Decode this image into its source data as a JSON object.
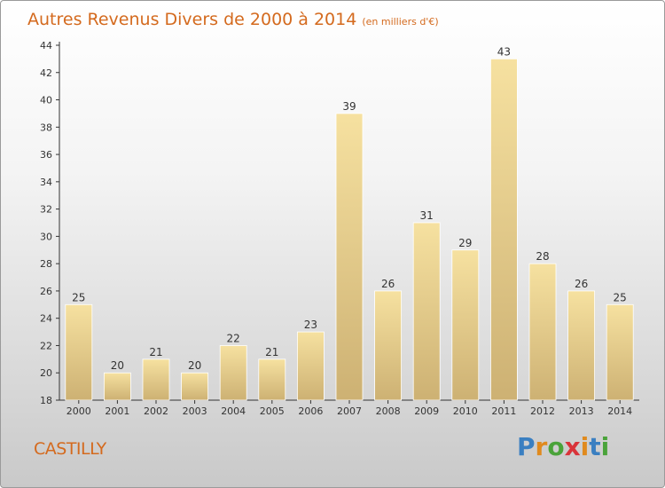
{
  "header": {
    "title": "Autres Revenus Divers de 2000 à 2014",
    "unit": "(en milliers d'€)"
  },
  "footer": {
    "town": "CASTILLY",
    "logo": [
      "P",
      "r",
      "o",
      "x",
      "i",
      "t",
      "i"
    ],
    "logo_colors": [
      "#3a7fc1",
      "#e08a1e",
      "#4aa33a",
      "#d9343a",
      "#e08a1e",
      "#3a7fc1",
      "#4aa33a"
    ]
  },
  "colors": {
    "bar_light": "#f6e1a0",
    "bar_dark": "#cdb173",
    "title": "#d46a1e"
  },
  "chart_data": {
    "type": "bar",
    "title": "Autres Revenus Divers de 2000 à 2014",
    "categories": [
      "2000",
      "2001",
      "2002",
      "2003",
      "2004",
      "2005",
      "2006",
      "2007",
      "2008",
      "2009",
      "2010",
      "2011",
      "2012",
      "2013",
      "2014"
    ],
    "values": [
      25,
      20,
      21,
      20,
      22,
      21,
      23,
      39,
      26,
      31,
      29,
      43,
      28,
      26,
      25
    ],
    "ylim": [
      18,
      44
    ],
    "yticks": [
      18,
      20,
      22,
      24,
      26,
      28,
      30,
      32,
      34,
      36,
      38,
      40,
      42,
      44
    ],
    "grid": false,
    "legend": "none",
    "data_labels": true
  }
}
